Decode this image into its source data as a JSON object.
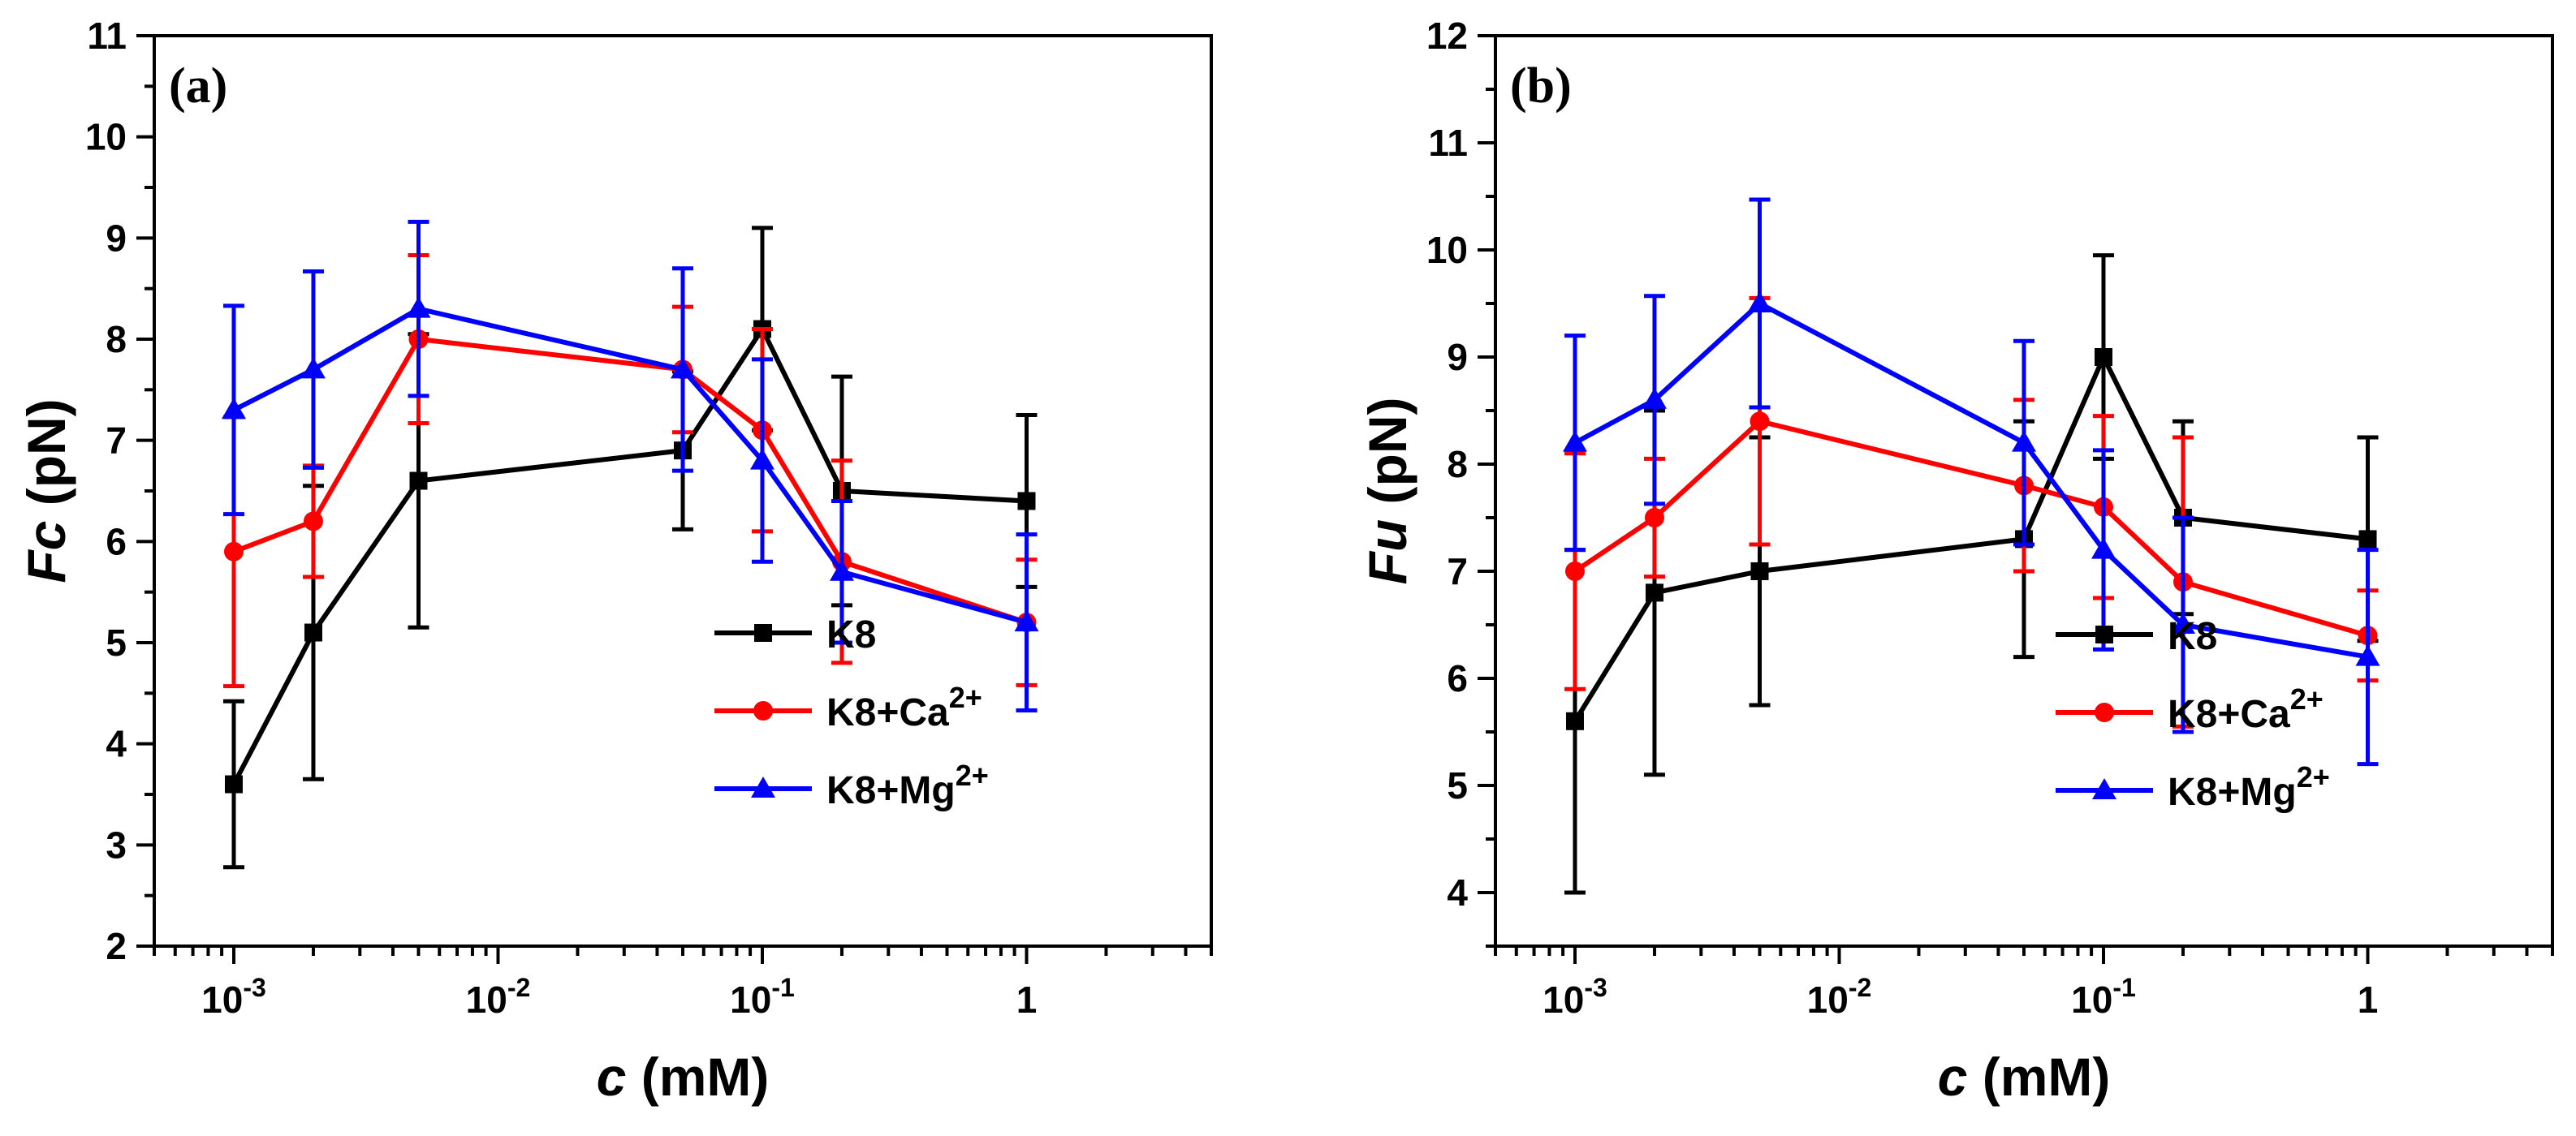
{
  "chart_data": [
    {
      "type": "line",
      "panel_label": "(a)",
      "title": "",
      "xlabel": "c",
      "xlabel_unit": "(mM)",
      "ylabel": "Fc",
      "ylabel_unit": "(pN)",
      "xscale": "log",
      "xlim": [
        0.0005,
        5
      ],
      "ylim": [
        2,
        11
      ],
      "xticks": [
        0.001,
        0.01,
        0.1,
        1
      ],
      "xtick_labels": [
        {
          "base": "10",
          "exp": "-3"
        },
        {
          "base": "10",
          "exp": "-2"
        },
        {
          "base": "10",
          "exp": "-1"
        },
        {
          "base": "1",
          "exp": ""
        }
      ],
      "yticks": [
        2,
        3,
        4,
        5,
        6,
        7,
        8,
        9,
        10,
        11
      ],
      "ytick_labels": [
        "2",
        "3",
        "4",
        "5",
        "6",
        "7",
        "8",
        "9",
        "10",
        "11"
      ],
      "legend_position": "bottom-right",
      "x": [
        0.001,
        0.002,
        0.005,
        0.05,
        0.1,
        0.2,
        1
      ],
      "series": [
        {
          "name": "K8",
          "ion": "",
          "charge": "",
          "color": "#000000",
          "marker": "square",
          "values": [
            3.6,
            5.1,
            6.6,
            6.9,
            8.1,
            6.5,
            6.4
          ],
          "errors": [
            0.82,
            1.45,
            1.45,
            0.78,
            1.0,
            1.13,
            0.85
          ]
        },
        {
          "name": "K8+Ca2+",
          "ion": "K8+Ca",
          "charge": "2+",
          "color": "#ff0000",
          "marker": "circle",
          "values": [
            5.9,
            6.2,
            8.0,
            7.7,
            7.1,
            5.8,
            5.2
          ],
          "errors": [
            1.33,
            0.55,
            0.83,
            0.62,
            1.0,
            1.0,
            0.62
          ]
        },
        {
          "name": "K8+Mg2+",
          "ion": "K8+Mg",
          "charge": "2+",
          "color": "#0000ff",
          "marker": "triangle",
          "values": [
            7.3,
            7.7,
            8.3,
            7.7,
            6.8,
            5.7,
            5.2
          ],
          "errors": [
            1.03,
            0.97,
            0.86,
            1.0,
            1.0,
            0.7,
            0.87
          ]
        }
      ]
    },
    {
      "type": "line",
      "panel_label": "(b)",
      "title": "",
      "xlabel": "c",
      "xlabel_unit": "(mM)",
      "ylabel": "Fu",
      "ylabel_unit": "(pN)",
      "xscale": "log",
      "xlim": [
        0.0005,
        5
      ],
      "ylim": [
        3.5,
        12
      ],
      "xticks": [
        0.001,
        0.01,
        0.1,
        1
      ],
      "xtick_labels": [
        {
          "base": "10",
          "exp": "-3"
        },
        {
          "base": "10",
          "exp": "-2"
        },
        {
          "base": "10",
          "exp": "-1"
        },
        {
          "base": "1",
          "exp": ""
        }
      ],
      "yticks": [
        4,
        5,
        6,
        7,
        8,
        9,
        10,
        11,
        12
      ],
      "ytick_labels": [
        "4",
        "5",
        "6",
        "7",
        "8",
        "9",
        "10",
        "11",
        "12"
      ],
      "legend_position": "bottom-right",
      "x": [
        0.001,
        0.002,
        0.005,
        0.05,
        0.1,
        0.2,
        1
      ],
      "series": [
        {
          "name": "K8",
          "ion": "",
          "charge": "",
          "color": "#000000",
          "marker": "square",
          "values": [
            5.6,
            6.8,
            7.0,
            7.3,
            9.0,
            7.5,
            7.3
          ],
          "errors": [
            1.6,
            1.7,
            1.25,
            1.1,
            0.95,
            0.9,
            0.95
          ]
        },
        {
          "name": "K8+Ca2+",
          "ion": "K8+Ca",
          "charge": "2+",
          "color": "#ff0000",
          "marker": "circle",
          "values": [
            7.0,
            7.5,
            8.4,
            7.8,
            7.6,
            6.9,
            6.4
          ],
          "errors": [
            1.1,
            0.55,
            1.15,
            0.8,
            0.85,
            1.35,
            0.42
          ]
        },
        {
          "name": "K8+Mg2+",
          "ion": "K8+Mg",
          "charge": "2+",
          "color": "#0000ff",
          "marker": "triangle",
          "values": [
            8.2,
            8.6,
            9.5,
            8.2,
            7.2,
            6.5,
            6.2
          ],
          "errors": [
            1.0,
            0.97,
            0.97,
            0.95,
            0.93,
            1.0,
            1.0
          ]
        }
      ]
    }
  ]
}
